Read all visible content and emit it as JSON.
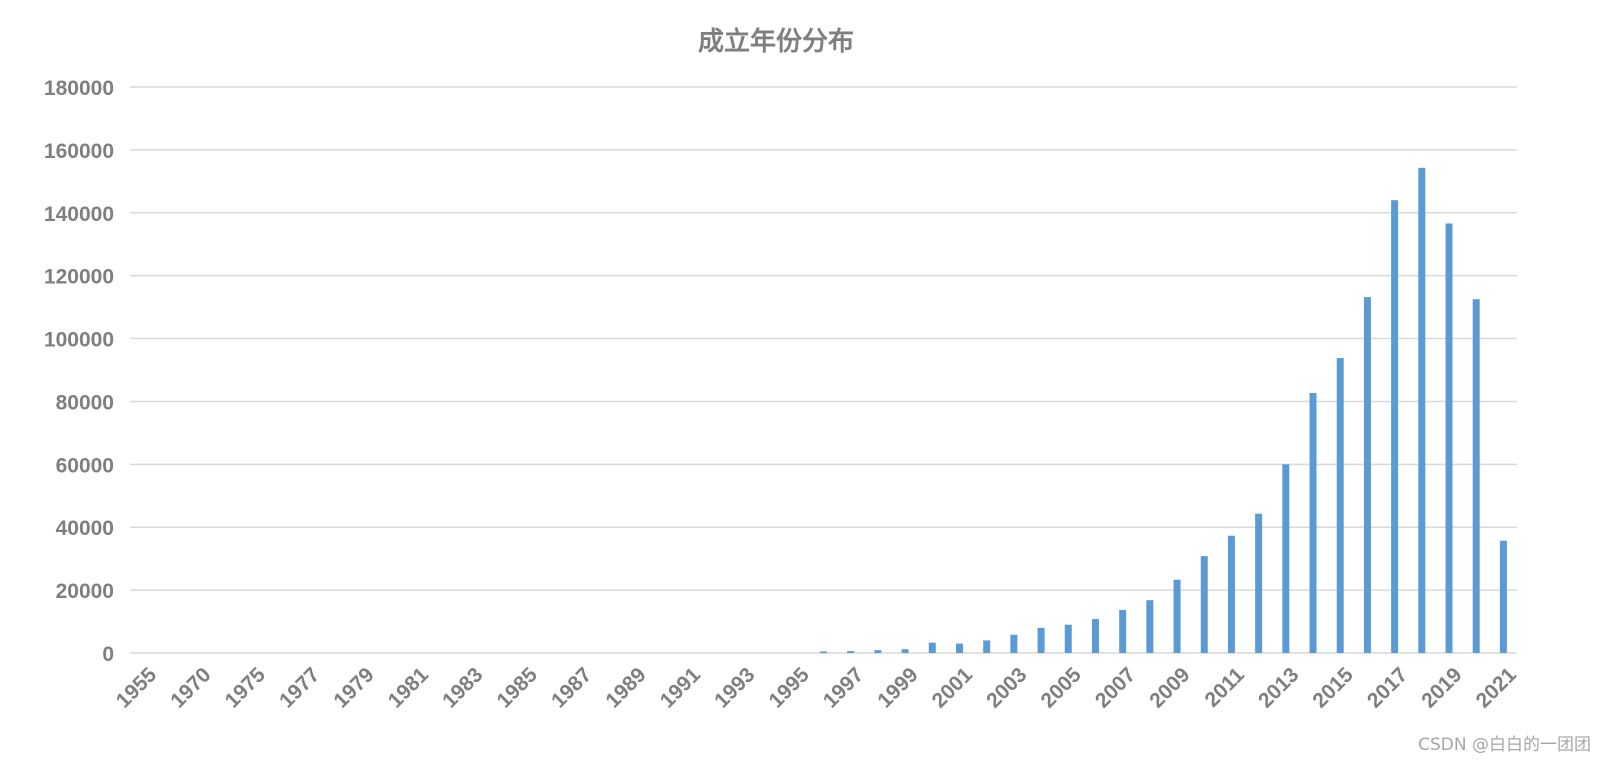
{
  "chart_data": {
    "type": "bar",
    "title": "成立年份分布",
    "xlabel": "",
    "ylabel": "",
    "ylim": [
      0,
      180000
    ],
    "yticks": [
      0,
      20000,
      40000,
      60000,
      80000,
      100000,
      120000,
      140000,
      160000,
      180000
    ],
    "grid": true,
    "legend": "none",
    "bar_color": "#5b9bd5",
    "categories": [
      "1955",
      "1970",
      "1975",
      "1977",
      "1979",
      "1981",
      "1983",
      "1985",
      "1987",
      "1989",
      "1991",
      "1993",
      "1995",
      "1997",
      "1999",
      "2001",
      "2003",
      "2005",
      "2007",
      "2009",
      "2011",
      "2013",
      "2015",
      "2017",
      "2019",
      "2021"
    ],
    "x": [
      "1955",
      "1960",
      "1970",
      "1972",
      "1975",
      "1976",
      "1977",
      "1978",
      "1979",
      "1980",
      "1981",
      "1982",
      "1983",
      "1984",
      "1985",
      "1986",
      "1987",
      "1988",
      "1989",
      "1990",
      "1991",
      "1992",
      "1993",
      "1994",
      "1995",
      "1996",
      "1997",
      "1998",
      "1999",
      "2000",
      "2001",
      "2002",
      "2003",
      "2004",
      "2005",
      "2006",
      "2007",
      "2008",
      "2009",
      "2010",
      "2011",
      "2012",
      "2013",
      "2014",
      "2015",
      "2016",
      "2017",
      "2018",
      "2019",
      "2020",
      "2021"
    ],
    "values": [
      0,
      0,
      0,
      0,
      0,
      0,
      0,
      0,
      0,
      0,
      0,
      0,
      0,
      0,
      0,
      0,
      0,
      0,
      0,
      0,
      0,
      0,
      0,
      0,
      0,
      500,
      600,
      900,
      1200,
      3300,
      3000,
      4000,
      5800,
      8000,
      9000,
      10800,
      13700,
      16800,
      23300,
      30800,
      37300,
      44300,
      60000,
      82700,
      93800,
      113200,
      144000,
      154300,
      136600,
      112500,
      35700
    ]
  },
  "watermark": "CSDN @白白的一团团"
}
